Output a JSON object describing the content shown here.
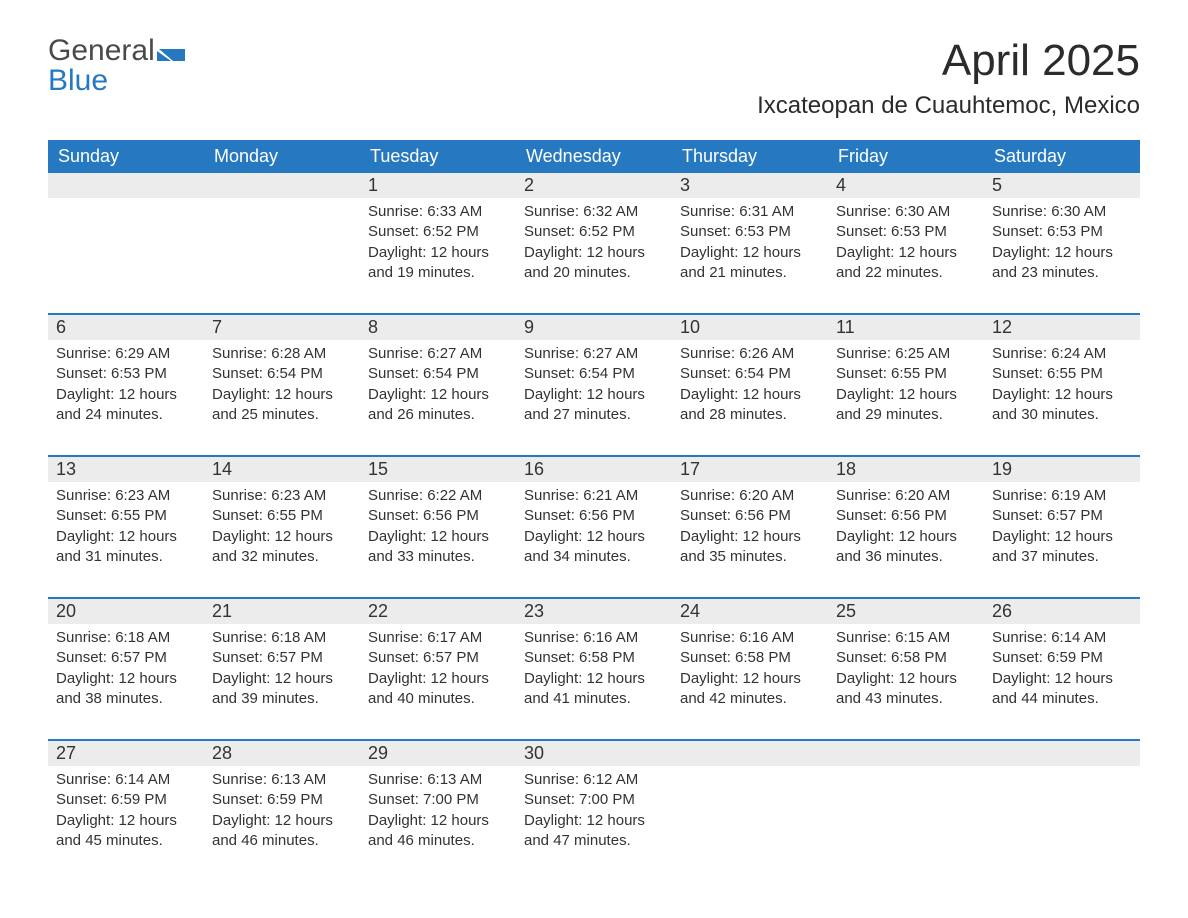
{
  "brand": {
    "line1": "General",
    "line2": "Blue"
  },
  "colors": {
    "header_bg": "#2679c0",
    "header_text": "#ffffff",
    "daynum_bg": "#ececec",
    "row_border": "#2679c0",
    "text": "#333333",
    "background": "#ffffff"
  },
  "title": "April 2025",
  "location": "Ixcateopan de Cuauhtemoc, Mexico",
  "weekdays": [
    "Sunday",
    "Monday",
    "Tuesday",
    "Wednesday",
    "Thursday",
    "Friday",
    "Saturday"
  ],
  "weeks": [
    [
      null,
      null,
      {
        "n": "1",
        "sr": "Sunrise: 6:33 AM",
        "ss": "Sunset: 6:52 PM",
        "dl1": "Daylight: 12 hours",
        "dl2": "and 19 minutes."
      },
      {
        "n": "2",
        "sr": "Sunrise: 6:32 AM",
        "ss": "Sunset: 6:52 PM",
        "dl1": "Daylight: 12 hours",
        "dl2": "and 20 minutes."
      },
      {
        "n": "3",
        "sr": "Sunrise: 6:31 AM",
        "ss": "Sunset: 6:53 PM",
        "dl1": "Daylight: 12 hours",
        "dl2": "and 21 minutes."
      },
      {
        "n": "4",
        "sr": "Sunrise: 6:30 AM",
        "ss": "Sunset: 6:53 PM",
        "dl1": "Daylight: 12 hours",
        "dl2": "and 22 minutes."
      },
      {
        "n": "5",
        "sr": "Sunrise: 6:30 AM",
        "ss": "Sunset: 6:53 PM",
        "dl1": "Daylight: 12 hours",
        "dl2": "and 23 minutes."
      }
    ],
    [
      {
        "n": "6",
        "sr": "Sunrise: 6:29 AM",
        "ss": "Sunset: 6:53 PM",
        "dl1": "Daylight: 12 hours",
        "dl2": "and 24 minutes."
      },
      {
        "n": "7",
        "sr": "Sunrise: 6:28 AM",
        "ss": "Sunset: 6:54 PM",
        "dl1": "Daylight: 12 hours",
        "dl2": "and 25 minutes."
      },
      {
        "n": "8",
        "sr": "Sunrise: 6:27 AM",
        "ss": "Sunset: 6:54 PM",
        "dl1": "Daylight: 12 hours",
        "dl2": "and 26 minutes."
      },
      {
        "n": "9",
        "sr": "Sunrise: 6:27 AM",
        "ss": "Sunset: 6:54 PM",
        "dl1": "Daylight: 12 hours",
        "dl2": "and 27 minutes."
      },
      {
        "n": "10",
        "sr": "Sunrise: 6:26 AM",
        "ss": "Sunset: 6:54 PM",
        "dl1": "Daylight: 12 hours",
        "dl2": "and 28 minutes."
      },
      {
        "n": "11",
        "sr": "Sunrise: 6:25 AM",
        "ss": "Sunset: 6:55 PM",
        "dl1": "Daylight: 12 hours",
        "dl2": "and 29 minutes."
      },
      {
        "n": "12",
        "sr": "Sunrise: 6:24 AM",
        "ss": "Sunset: 6:55 PM",
        "dl1": "Daylight: 12 hours",
        "dl2": "and 30 minutes."
      }
    ],
    [
      {
        "n": "13",
        "sr": "Sunrise: 6:23 AM",
        "ss": "Sunset: 6:55 PM",
        "dl1": "Daylight: 12 hours",
        "dl2": "and 31 minutes."
      },
      {
        "n": "14",
        "sr": "Sunrise: 6:23 AM",
        "ss": "Sunset: 6:55 PM",
        "dl1": "Daylight: 12 hours",
        "dl2": "and 32 minutes."
      },
      {
        "n": "15",
        "sr": "Sunrise: 6:22 AM",
        "ss": "Sunset: 6:56 PM",
        "dl1": "Daylight: 12 hours",
        "dl2": "and 33 minutes."
      },
      {
        "n": "16",
        "sr": "Sunrise: 6:21 AM",
        "ss": "Sunset: 6:56 PM",
        "dl1": "Daylight: 12 hours",
        "dl2": "and 34 minutes."
      },
      {
        "n": "17",
        "sr": "Sunrise: 6:20 AM",
        "ss": "Sunset: 6:56 PM",
        "dl1": "Daylight: 12 hours",
        "dl2": "and 35 minutes."
      },
      {
        "n": "18",
        "sr": "Sunrise: 6:20 AM",
        "ss": "Sunset: 6:56 PM",
        "dl1": "Daylight: 12 hours",
        "dl2": "and 36 minutes."
      },
      {
        "n": "19",
        "sr": "Sunrise: 6:19 AM",
        "ss": "Sunset: 6:57 PM",
        "dl1": "Daylight: 12 hours",
        "dl2": "and 37 minutes."
      }
    ],
    [
      {
        "n": "20",
        "sr": "Sunrise: 6:18 AM",
        "ss": "Sunset: 6:57 PM",
        "dl1": "Daylight: 12 hours",
        "dl2": "and 38 minutes."
      },
      {
        "n": "21",
        "sr": "Sunrise: 6:18 AM",
        "ss": "Sunset: 6:57 PM",
        "dl1": "Daylight: 12 hours",
        "dl2": "and 39 minutes."
      },
      {
        "n": "22",
        "sr": "Sunrise: 6:17 AM",
        "ss": "Sunset: 6:57 PM",
        "dl1": "Daylight: 12 hours",
        "dl2": "and 40 minutes."
      },
      {
        "n": "23",
        "sr": "Sunrise: 6:16 AM",
        "ss": "Sunset: 6:58 PM",
        "dl1": "Daylight: 12 hours",
        "dl2": "and 41 minutes."
      },
      {
        "n": "24",
        "sr": "Sunrise: 6:16 AM",
        "ss": "Sunset: 6:58 PM",
        "dl1": "Daylight: 12 hours",
        "dl2": "and 42 minutes."
      },
      {
        "n": "25",
        "sr": "Sunrise: 6:15 AM",
        "ss": "Sunset: 6:58 PM",
        "dl1": "Daylight: 12 hours",
        "dl2": "and 43 minutes."
      },
      {
        "n": "26",
        "sr": "Sunrise: 6:14 AM",
        "ss": "Sunset: 6:59 PM",
        "dl1": "Daylight: 12 hours",
        "dl2": "and 44 minutes."
      }
    ],
    [
      {
        "n": "27",
        "sr": "Sunrise: 6:14 AM",
        "ss": "Sunset: 6:59 PM",
        "dl1": "Daylight: 12 hours",
        "dl2": "and 45 minutes."
      },
      {
        "n": "28",
        "sr": "Sunrise: 6:13 AM",
        "ss": "Sunset: 6:59 PM",
        "dl1": "Daylight: 12 hours",
        "dl2": "and 46 minutes."
      },
      {
        "n": "29",
        "sr": "Sunrise: 6:13 AM",
        "ss": "Sunset: 7:00 PM",
        "dl1": "Daylight: 12 hours",
        "dl2": "and 46 minutes."
      },
      {
        "n": "30",
        "sr": "Sunrise: 6:12 AM",
        "ss": "Sunset: 7:00 PM",
        "dl1": "Daylight: 12 hours",
        "dl2": "and 47 minutes."
      },
      null,
      null,
      null
    ]
  ]
}
